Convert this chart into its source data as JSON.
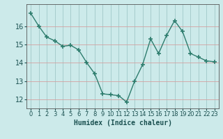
{
  "x": [
    0,
    1,
    2,
    3,
    4,
    5,
    6,
    7,
    8,
    9,
    10,
    11,
    12,
    13,
    14,
    15,
    16,
    17,
    18,
    19,
    20,
    21,
    22,
    23
  ],
  "y": [
    16.7,
    16.0,
    15.4,
    15.2,
    14.9,
    14.95,
    14.7,
    14.0,
    13.4,
    12.3,
    12.25,
    12.2,
    11.85,
    13.0,
    13.9,
    15.3,
    14.5,
    15.5,
    16.3,
    15.7,
    14.5,
    14.3,
    14.1,
    14.05
  ],
  "line_color": "#2e7d6e",
  "marker": "+",
  "marker_size": 4,
  "marker_linewidth": 1.2,
  "line_width": 1.0,
  "xlabel": "Humidex (Indice chaleur)",
  "ylim": [
    11.5,
    17.2
  ],
  "xlim": [
    -0.5,
    23.5
  ],
  "yticks": [
    12,
    13,
    14,
    15,
    16
  ],
  "xticks": [
    0,
    1,
    2,
    3,
    4,
    5,
    6,
    7,
    8,
    9,
    10,
    11,
    12,
    13,
    14,
    15,
    16,
    17,
    18,
    19,
    20,
    21,
    22,
    23
  ],
  "bg_color": "#cceaea",
  "grid_color_red": "#d4a0a0",
  "grid_color_teal": "#a0c8c8",
  "tick_fontsize": 6,
  "xlabel_fontsize": 7
}
